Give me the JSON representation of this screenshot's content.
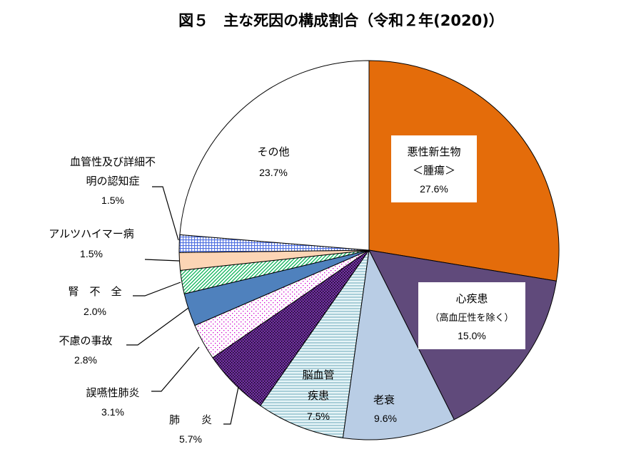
{
  "chart_data": {
    "type": "pie",
    "title": "図５　主な死因の構成割合（令和２年(2020)）",
    "unit": "%",
    "start": "12 o'clock",
    "direction": "clockwise",
    "slices": [
      {
        "name": "悪性新生物",
        "name_line2": "＜腫瘍＞",
        "value": 27.6,
        "value_label": "27.6%",
        "color": "#E46C0A"
      },
      {
        "name": "心疾患",
        "name_line2": "（高血圧性を除く）",
        "value": 15.0,
        "value_label": "15.0%",
        "color": "#604A7B"
      },
      {
        "name": "老衰",
        "value": 9.6,
        "value_label": "9.6%",
        "color": "#B9CDE5"
      },
      {
        "name": "脳血管",
        "name_line2": "疾患",
        "value": 7.5,
        "value_label": "7.5%",
        "color": "#DAEEF3",
        "pattern": "horizontal-lines"
      },
      {
        "name": "肺　　炎",
        "value": 5.7,
        "value_label": "5.7%",
        "color": "#7030A0",
        "pattern": "dots"
      },
      {
        "name": "誤嚥性肺炎",
        "value": 3.1,
        "value_label": "3.1%",
        "color": "#FFFFFF",
        "pattern": "magenta-dots"
      },
      {
        "name": "不慮の事故",
        "value": 2.8,
        "value_label": "2.8%",
        "color": "#4F81BD"
      },
      {
        "name": "腎　不　全",
        "value": 2.0,
        "value_label": "2.0%",
        "color": "#FFFFFF",
        "pattern": "green-diagonal"
      },
      {
        "name": "アルツハイマー病",
        "value": 1.5,
        "value_label": "1.5%",
        "color": "#FCD5B5"
      },
      {
        "name": "血管性及び詳細不",
        "name_line2": "明の認知症",
        "value": 1.5,
        "value_label": "1.5%",
        "color": "#FFFFFF",
        "pattern": "blue-grid"
      },
      {
        "name": "その他",
        "value": 23.7,
        "value_label": "23.7%",
        "color": "#FFFFFF"
      }
    ]
  }
}
